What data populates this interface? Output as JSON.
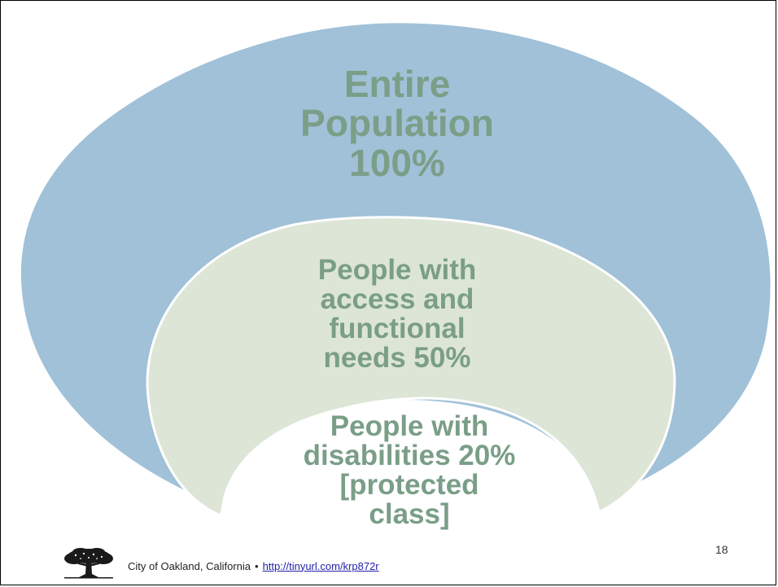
{
  "diagram": {
    "outer": {
      "lines": [
        "Entire",
        "Population",
        "100%"
      ]
    },
    "middle": {
      "lines": [
        "People with",
        "access and",
        "functional",
        "needs 50%"
      ]
    },
    "inner": {
      "lines": [
        "People with",
        "disabilities 20%",
        "[protected",
        "class]"
      ]
    },
    "colors": {
      "outer_fill": "#a0c1d8",
      "outer_stroke": "#ffffff",
      "middle_fill": "#dde5d6",
      "middle_stroke": "#ffffff",
      "inner_fill": "#ffffff",
      "text": "#7a9e87"
    }
  },
  "footer": {
    "organization": "City of Oakland, California",
    "separator": "•",
    "link_text": "http://tinyurl.com/krp872r",
    "logo_icon": "oak-tree-icon"
  },
  "page_number": "18"
}
